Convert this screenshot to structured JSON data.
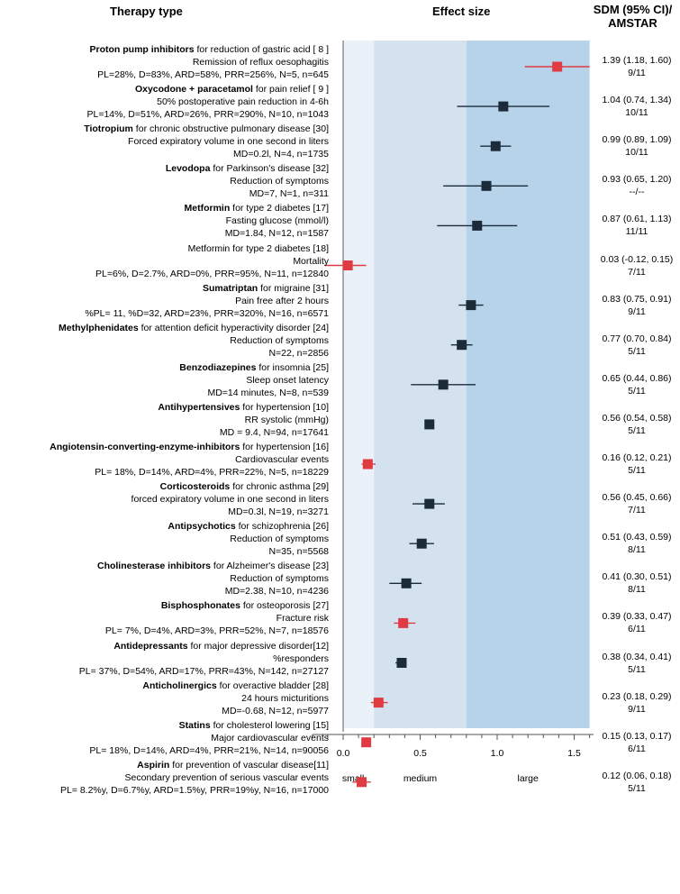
{
  "headers": {
    "therapy": "Therapy type",
    "effect": "Effect size",
    "sdm_line1": "SDM (95% CI)/",
    "sdm_line2": "AMSTAR"
  },
  "colors": {
    "small_band": "#eaf1f8",
    "medium_band": "#d4e2f0",
    "large_band": "#b7d3e9",
    "dark_marker": "#1b2b3a",
    "red_marker": "#e03a42"
  },
  "zones": {
    "small": "small",
    "medium": "medium",
    "large": "large"
  },
  "chart_data": {
    "type": "forest",
    "title": "",
    "xlabel": "",
    "xlim": [
      -0.2,
      1.6
    ],
    "xticks": [
      {
        "value": 0.0,
        "label": "0.0"
      },
      {
        "value": 0.5,
        "label": "0.5"
      },
      {
        "value": 1.0,
        "label": "1.0"
      },
      {
        "value": 1.5,
        "label": "1.5"
      }
    ],
    "zones": [
      {
        "label": "small",
        "from": 0.0,
        "to": 0.2
      },
      {
        "label": "medium",
        "from": 0.2,
        "to": 0.8
      },
      {
        "label": "large",
        "from": 0.8,
        "to": 1.6
      }
    ],
    "studies": [
      {
        "bold": "Proton pump inhibitors",
        "title": " for reduction of gastric acid [ 8 ]",
        "outcome": "Remission of reflux oesophagitis",
        "details": "PL=28%, D=83%, ARD=58%, PRR=256%, N=5, n=645",
        "sdm": "1.39 (1.18, 1.60)",
        "amstar": "9/11",
        "est": 1.39,
        "lo": 1.18,
        "hi": 1.6,
        "color": "red"
      },
      {
        "bold": "Oxycodone + paracetamol",
        "title": " for pain relief [ 9 ]",
        "outcome": "50% postoperative pain reduction in 4-6h",
        "details": "PL=14%, D=51%, ARD=26%, PRR=290%, N=10, n=1043",
        "sdm": "1.04 (0.74, 1.34)",
        "amstar": "10/11",
        "est": 1.04,
        "lo": 0.74,
        "hi": 1.34,
        "color": "dark"
      },
      {
        "bold": "Tiotropium",
        "title": " for chronic obstructive pulmonary disease [30]",
        "outcome": "Forced expiratory volume in one second in liters",
        "details": "MD=0.2l, N=4, n=1735",
        "sdm": "0.99 (0.89, 1.09)",
        "amstar": "10/11",
        "est": 0.99,
        "lo": 0.89,
        "hi": 1.09,
        "color": "dark"
      },
      {
        "bold": "Levodopa",
        "title": " for Parkinson's disease [32]",
        "outcome": "Reduction of symptoms",
        "details": "MD=7, N=1, n=311",
        "sdm": "0.93 (0.65, 1.20)",
        "amstar": "--/--",
        "est": 0.93,
        "lo": 0.65,
        "hi": 1.2,
        "color": "dark"
      },
      {
        "bold": "Metformin",
        "title": " for type 2 diabetes [17]",
        "outcome": "Fasting glucose (mmol/l)",
        "details": "MD=1.84, N=12, n=1587",
        "sdm": "0.87 (0.61, 1.13)",
        "amstar": "11/11",
        "est": 0.87,
        "lo": 0.61,
        "hi": 1.13,
        "color": "dark"
      },
      {
        "bold": "",
        "title": "Metformin for type 2 diabetes [18]",
        "outcome": "Mortality",
        "details": "PL=6%, D=2.7%, ARD=0%, PRR=95%, N=11, n=12840",
        "sdm": "0.03 (-0.12, 0.15)",
        "amstar": "7/11",
        "est": 0.03,
        "lo": -0.12,
        "hi": 0.15,
        "color": "red"
      },
      {
        "bold": "Sumatriptan",
        "title": " for migraine [31]",
        "outcome": "Pain free after 2 hours",
        "details": "%PL= 11, %D=32, ARD=23%, PRR=320%, N=16, n=6571",
        "sdm": "0.83 (0.75, 0.91)",
        "amstar": "9/11",
        "est": 0.83,
        "lo": 0.75,
        "hi": 0.91,
        "color": "dark"
      },
      {
        "bold": "Methylphenidates",
        "title": " for attention deficit hyperactivity disorder [24]",
        "outcome": "Reduction of symptoms",
        "details": "N=22, n=2856",
        "sdm": "0.77 (0.70, 0.84)",
        "amstar": "5/11",
        "est": 0.77,
        "lo": 0.7,
        "hi": 0.84,
        "color": "dark"
      },
      {
        "bold": "Benzodiazepines",
        "title": " for insomnia [25]",
        "outcome": "Sleep onset latency",
        "details": "MD=14 minutes, N=8, n=539",
        "sdm": "0.65 (0.44, 0.86)",
        "amstar": "5/11",
        "est": 0.65,
        "lo": 0.44,
        "hi": 0.86,
        "color": "dark"
      },
      {
        "bold": "Antihypertensives",
        "title": " for hypertension [10]",
        "outcome": "RR systolic (mmHg)",
        "details": "MD = 9.4, N=94, n=17641",
        "sdm": "0.56 (0.54, 0.58)",
        "amstar": "5/11",
        "est": 0.56,
        "lo": 0.54,
        "hi": 0.58,
        "color": "dark"
      },
      {
        "bold": "Angiotensin-converting-enzyme-inhibitors",
        "title": " for hypertension [16]",
        "outcome": "Cardiovascular events",
        "details": "PL= 18%, D=14%, ARD=4%, PRR=22%, N=5, n=18229",
        "sdm": "0.16 (0.12, 0.21)",
        "amstar": "5/11",
        "est": 0.16,
        "lo": 0.12,
        "hi": 0.21,
        "color": "red"
      },
      {
        "bold": "Corticosteroids",
        "title": " for chronic asthma [29]",
        "outcome": "forced expiratory volume in one second in liters",
        "details": "MD=0.3l, N=19, n=3271",
        "sdm": "0.56 (0.45, 0.66)",
        "amstar": "7/11",
        "est": 0.56,
        "lo": 0.45,
        "hi": 0.66,
        "color": "dark"
      },
      {
        "bold": "Antipsychotics",
        "title": " for schizophrenia [26]",
        "outcome": "Reduction of symptoms",
        "details": "N=35, n=5568",
        "sdm": "0.51 (0.43, 0.59)",
        "amstar": "8/11",
        "est": 0.51,
        "lo": 0.43,
        "hi": 0.59,
        "color": "dark"
      },
      {
        "bold": "Cholinesterase inhibitors",
        "title": " for Alzheimer's disease [23]",
        "outcome": "Reduction of symptoms",
        "details": "MD=2.38, N=10, n=4236",
        "sdm": "0.41 (0.30, 0.51)",
        "amstar": "8/11",
        "est": 0.41,
        "lo": 0.3,
        "hi": 0.51,
        "color": "dark"
      },
      {
        "bold": "Bisphosphonates",
        "title": " for osteoporosis [27]",
        "outcome": "Fracture risk",
        "details": "PL= 7%, D=4%, ARD=3%, PRR=52%, N=7, n=18576",
        "sdm": "0.39 (0.33, 0.47)",
        "amstar": "6/11",
        "est": 0.39,
        "lo": 0.33,
        "hi": 0.47,
        "color": "red"
      },
      {
        "bold": "Antidepressants",
        "title": " for major depressive disorder[12]",
        "outcome": "%responders",
        "details": "PL= 37%, D=54%, ARD=17%, PRR=43%, N=142, n=27127",
        "sdm": "0.38 (0.34, 0.41)",
        "amstar": "5/11",
        "est": 0.38,
        "lo": 0.34,
        "hi": 0.41,
        "color": "dark"
      },
      {
        "bold": "Anticholinergics",
        "title": " for overactive bladder [28]",
        "outcome": "24 hours micturitions",
        "details": "MD=-0.68, N=12, n=5977",
        "sdm": "0.23 (0.18, 0.29)",
        "amstar": "9/11",
        "est": 0.23,
        "lo": 0.18,
        "hi": 0.29,
        "color": "red"
      },
      {
        "bold": "Statins",
        "title": " for cholesterol lowering [15]",
        "outcome": "Major cardiovascular events",
        "details": "PL= 18%, D=14%, ARD=4%, PRR=21%, N=14, n=90056",
        "sdm": "0.15 (0.13, 0.17)",
        "amstar": "6/11",
        "est": 0.15,
        "lo": 0.13,
        "hi": 0.17,
        "color": "red"
      },
      {
        "bold": "Aspirin",
        "title": " for prevention of vascular disease[11]",
        "outcome": "Secondary prevention of serious vascular events",
        "details": "PL= 8.2%y, D=6.7%y, ARD=1.5%y, PRR=19%y, N=16, n=17000",
        "sdm": "0.12 (0.06, 0.18)",
        "amstar": "5/11",
        "est": 0.12,
        "lo": 0.06,
        "hi": 0.18,
        "color": "red"
      }
    ]
  }
}
